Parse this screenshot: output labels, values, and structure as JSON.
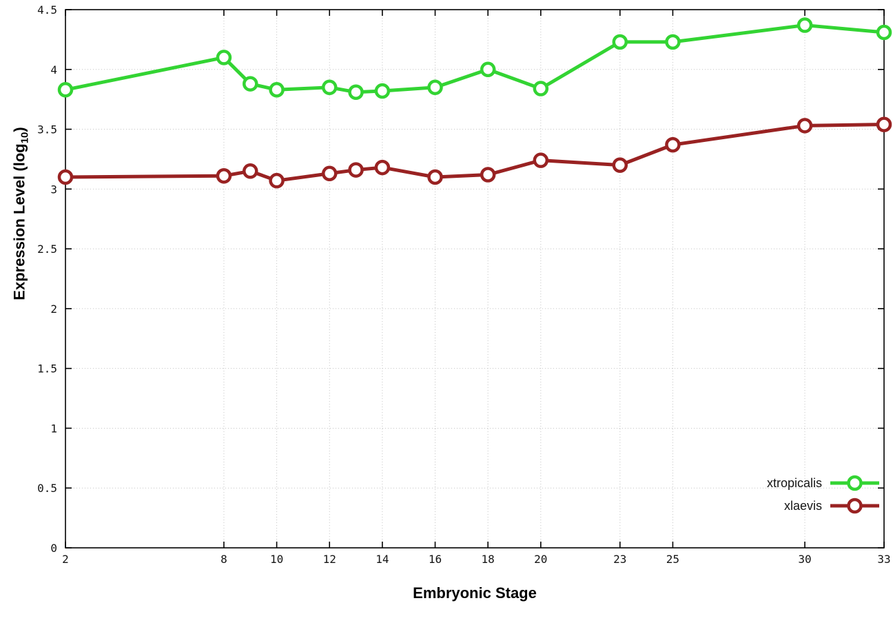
{
  "chart_data": {
    "type": "line",
    "title": "",
    "xlabel": "Embryonic Stage",
    "ylabel": "Expression Level (log10)",
    "ylabel_parts": {
      "main": "Expression Level (log",
      "sub": "10",
      "close": ")"
    },
    "xlim": [
      2,
      33
    ],
    "ylim": [
      0,
      4.5
    ],
    "xticks": [
      2,
      8,
      10,
      12,
      14,
      16,
      18,
      20,
      23,
      25,
      30,
      33
    ],
    "yticks": [
      0,
      0.5,
      1,
      1.5,
      2,
      2.5,
      3,
      3.5,
      4,
      4.5
    ],
    "grid": true,
    "legend_position": "bottom-right",
    "x": [
      2,
      8,
      9,
      10,
      12,
      13,
      14,
      16,
      18,
      20,
      23,
      25,
      30,
      33
    ],
    "series": [
      {
        "name": "xtropicalis",
        "color": "#33d433",
        "values": [
          3.83,
          4.1,
          3.88,
          3.83,
          3.85,
          3.81,
          3.82,
          3.85,
          4.0,
          3.84,
          4.23,
          4.23,
          4.37,
          4.31
        ]
      },
      {
        "name": "xlaevis",
        "color": "#992222",
        "values": [
          3.1,
          3.11,
          3.15,
          3.07,
          3.13,
          3.16,
          3.18,
          3.1,
          3.12,
          3.24,
          3.2,
          3.37,
          3.53,
          3.54
        ]
      }
    ]
  }
}
